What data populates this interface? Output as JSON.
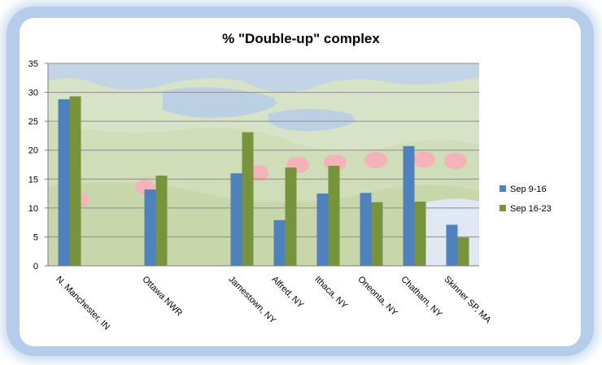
{
  "chart_data": {
    "type": "bar",
    "title": "% \"Double-up\"  complex",
    "xlabel": "",
    "ylabel": "",
    "ylim": [
      0,
      35
    ],
    "yticks": [
      0,
      5,
      10,
      15,
      20,
      25,
      30,
      35
    ],
    "grid": true,
    "legend_position": "right",
    "categories": [
      "N. Manchester, IN",
      "",
      "Ottawa NWR",
      "",
      "Jamestown, NY",
      "Alfred, NY",
      "Ithaca, NY",
      "Oneonta, NY",
      "Chatham, NY",
      "Skinner SP, MA"
    ],
    "series": [
      {
        "name": "Sep 9-16",
        "color": "#4f81bd",
        "values": [
          28.8,
          null,
          13.2,
          null,
          16.0,
          7.9,
          12.5,
          12.6,
          20.7,
          7.1
        ]
      },
      {
        "name": "Sep 16-23",
        "color": "#77933c",
        "values": [
          29.3,
          null,
          15.6,
          null,
          23.1,
          17.0,
          17.3,
          11.0,
          11.1,
          4.9
        ]
      }
    ]
  }
}
